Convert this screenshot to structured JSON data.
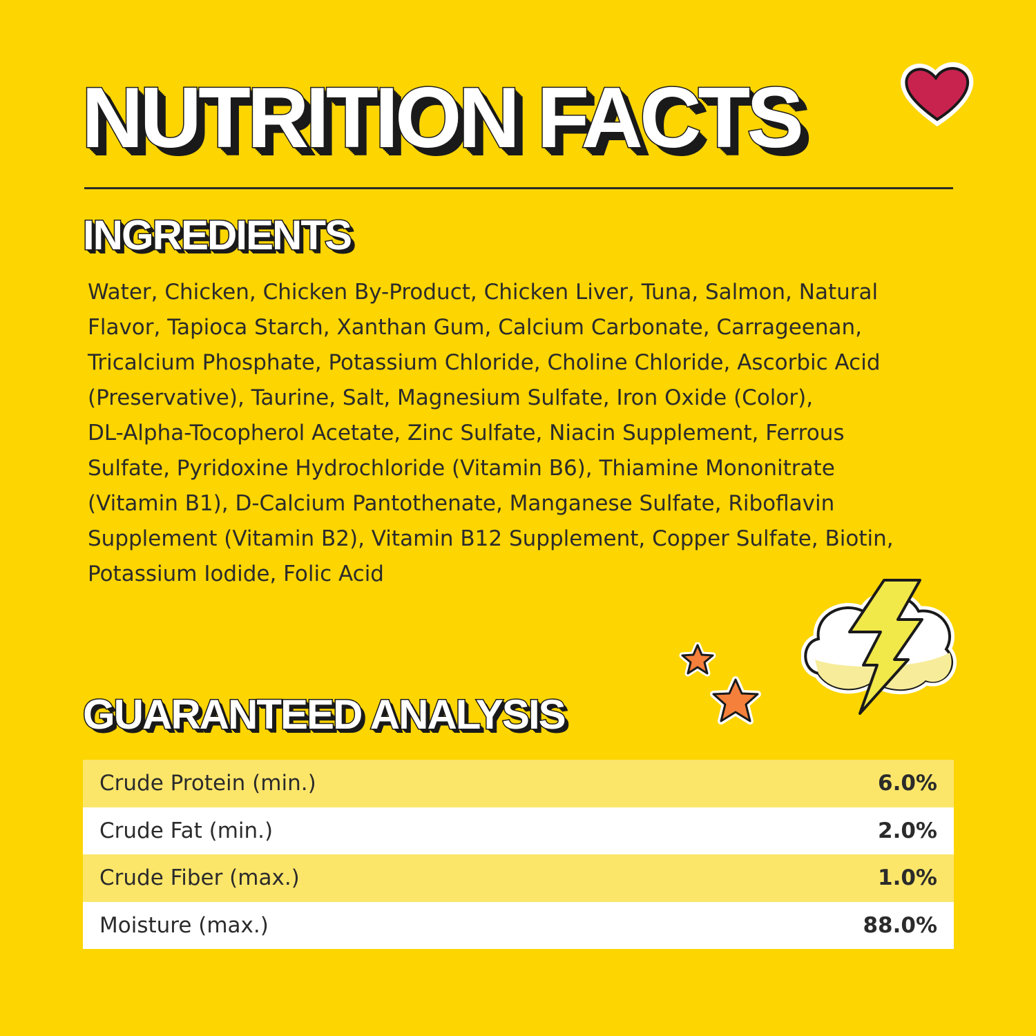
{
  "title": "NUTRITION FACTS",
  "ingredients": {
    "heading": "INGREDIENTS",
    "lines": [
      "Water, Chicken, Chicken By-Product, Chicken Liver, Tuna, Salmon, Natural",
      "Flavor, Tapioca Starch, Xanthan Gum, Calcium Carbonate, Carrageenan,",
      "Tricalcium Phosphate, Potassium Chloride, Choline Chloride, Ascorbic Acid",
      "(Preservative), Taurine, Salt, Magnesium Sulfate, Iron Oxide (Color),",
      "DL-Alpha-Tocopherol Acetate, Zinc Sulfate, Niacin Supplement, Ferrous",
      "Sulfate, Pyridoxine Hydrochloride (Vitamin B6), Thiamine Mononitrate",
      "(Vitamin B1), D-Calcium Pantothenate, Manganese Sulfate, Riboflavin",
      "Supplement (Vitamin B2), Vitamin B12 Supplement, Copper Sulfate, Biotin,",
      "Potassium Iodide, Folic Acid"
    ]
  },
  "analysis": {
    "heading": "GUARANTEED ANALYSIS",
    "rows": [
      {
        "label": "Crude Protein (min.)",
        "value": "6.0%"
      },
      {
        "label": "Crude Fat (min.)",
        "value": "2.0%"
      },
      {
        "label": "Crude Fiber (max.)",
        "value": "1.0%"
      },
      {
        "label": "Moisture (max.)",
        "value": "88.0%"
      }
    ]
  },
  "decorations": {
    "heart": "heart-icon",
    "stars": "star-icon",
    "cloud": "lightning-cloud-icon"
  },
  "colors": {
    "background": "#FDD500",
    "row_alt": "#FCE66A",
    "heart": "#C8234F",
    "star": "#F5803B"
  }
}
